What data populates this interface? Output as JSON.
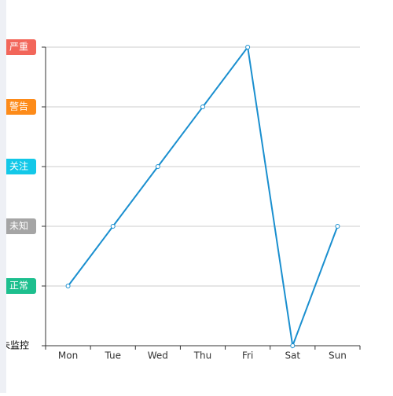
{
  "chart_data": {
    "type": "line",
    "categories": [
      "Mon",
      "Tue",
      "Wed",
      "Thu",
      "Fri",
      "Sat",
      "Sun"
    ],
    "series": [
      {
        "color": "#1a8fcf",
        "values": [
          1,
          2,
          3,
          4,
          5,
          0,
          2
        ]
      }
    ],
    "ylim": [
      0,
      5
    ],
    "yticks": [
      {
        "value": 0,
        "label": "未监控"
      },
      {
        "value": 1,
        "label": "正常"
      },
      {
        "value": 2,
        "label": "未知"
      },
      {
        "value": 3,
        "label": "关注"
      },
      {
        "value": 4,
        "label": "警告"
      },
      {
        "value": 5,
        "label": "严重"
      }
    ],
    "ytick_colors": [
      null,
      "#1dbf8e",
      "#a5a5a5",
      "#13c8e8",
      "#fd8b19",
      "#f2665a"
    ],
    "grid": true
  }
}
